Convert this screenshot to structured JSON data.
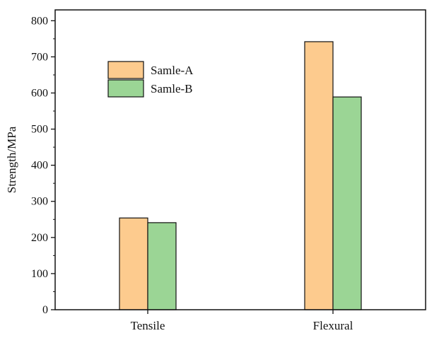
{
  "chart_data": {
    "type": "bar",
    "categories": [
      "Tensile",
      "Flexural"
    ],
    "series": [
      {
        "name": "Samle-A",
        "values": [
          254,
          742
        ],
        "color": "#fdcb8e"
      },
      {
        "name": "Samle-B",
        "values": [
          241,
          589
        ],
        "color": "#9bd595"
      }
    ],
    "ylabel": "Strength/MPa",
    "xlabel": "",
    "ylim": [
      0,
      830
    ],
    "yticks": [
      0,
      100,
      200,
      300,
      400,
      500,
      600,
      700,
      800
    ],
    "legend_position": "top-left",
    "grid": false
  }
}
